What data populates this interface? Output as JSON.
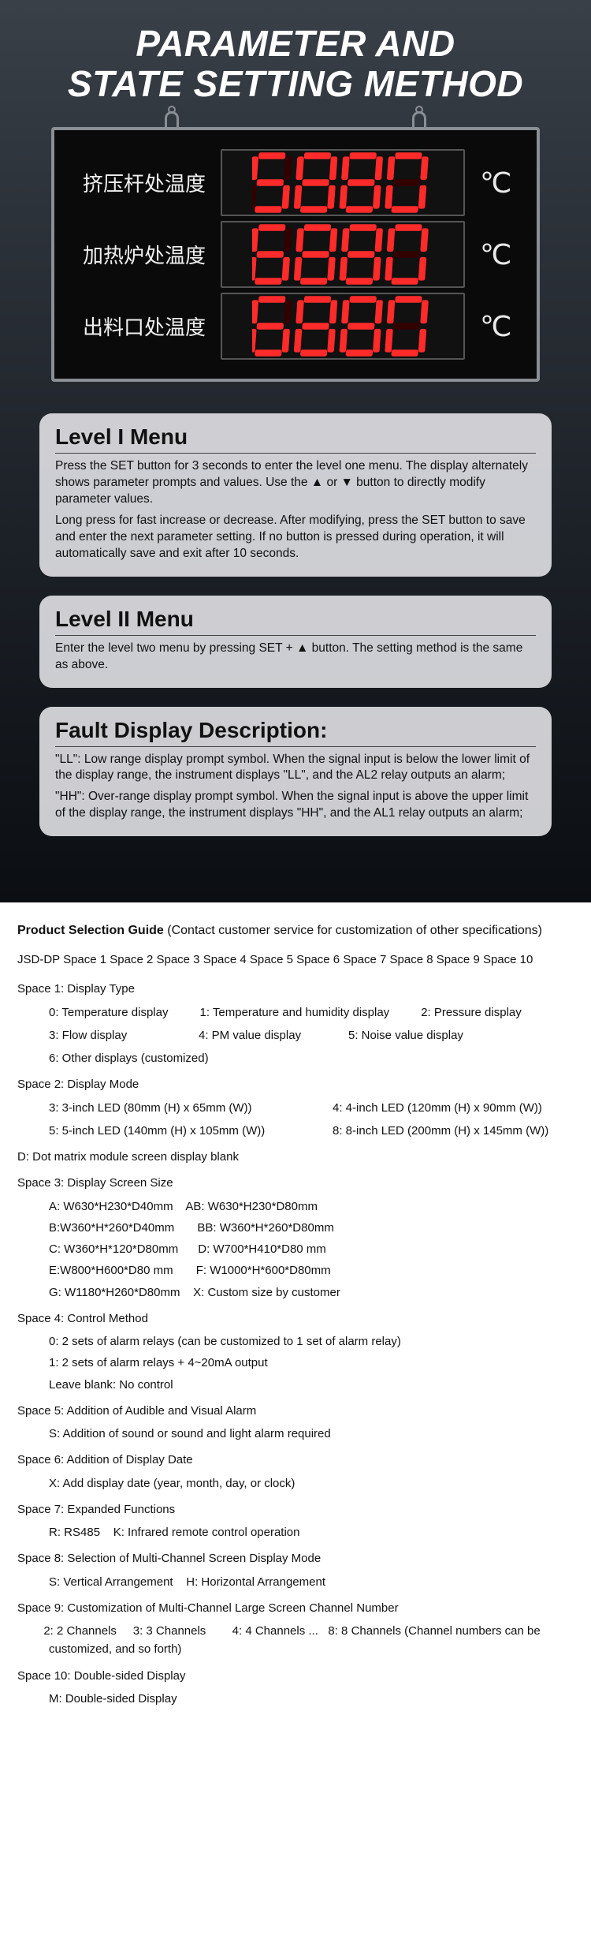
{
  "hero": {
    "title_line1": "PARAMETER AND",
    "title_line2": "STATE SETTING METHOD",
    "segment_color": "#ff2a2a",
    "segment_bg_color": "#330000",
    "device_rows": [
      {
        "label": "挤压杆处温度",
        "digits": "5880",
        "unit": "℃"
      },
      {
        "label": "加热炉处温度",
        "digits": "6880",
        "unit": "℃"
      },
      {
        "label": "出料口处温度",
        "digits": "6880",
        "unit": "℃"
      }
    ]
  },
  "panels": [
    {
      "title": "Level I Menu",
      "paragraphs": [
        "Press the SET button for 3 seconds to enter the level one menu. The display alternately shows parameter prompts and values. Use the ▲ or ▼ button to directly modify parameter values.",
        "Long press for fast increase or decrease. After modifying, press the SET button to save and enter the next parameter setting. If no button is pressed during operation, it will automatically save and exit after 10 seconds."
      ]
    },
    {
      "title": "Level II Menu",
      "paragraphs": [
        "Enter the level two menu by pressing SET + ▲ button. The setting method is the same as above."
      ]
    },
    {
      "title": "Fault Display Description:",
      "paragraphs": [
        "\"LL\": Low range display prompt symbol. When the signal input is below the lower limit of the display range, the instrument displays \"LL\", and the AL2 relay outputs an alarm;",
        "\"HH\": Over-range display prompt symbol. When the signal input is above the upper limit of the display range, the instrument displays \"HH\", and the AL1 relay outputs an alarm;"
      ]
    }
  ],
  "guide": {
    "title_bold": "Product Selection Guide",
    "title_rest": " (Contact customer service for customization of other specifications)",
    "code_line": "JSD-DP Space 1 Space 2 Space 3 Space 4 Space 5 Space 6 Space 7 Space 8 Space 9 Space 10",
    "spaces": [
      {
        "header": "Space 1: Display Type",
        "options": [
          "0: Temperature display",
          "1: Temperature and humidity display",
          "2: Pressure display",
          "3: Flow display",
          "4: PM value display",
          "5: Noise value display",
          "6: Other displays (customized)"
        ],
        "layout": "grid"
      },
      {
        "header": "Space 2: Display Mode",
        "options": [
          "3: 3-inch LED (80mm (H) x 65mm (W))",
          "4: 4-inch LED (120mm (H) x 90mm (W))",
          "5: 5-inch LED (140mm (H) x 105mm (W))",
          "8: 8-inch LED (200mm (H) x 145mm (W))"
        ],
        "trailer": "D: Dot matrix module screen display blank",
        "layout": "grid2"
      },
      {
        "header": "Space 3: Display Screen Size",
        "options": [
          "A: W630*H230*D40mm    AB: W630*H230*D80mm",
          "B:W360*H*260*D40mm       BB: W360*H*260*D80mm",
          "C: W360*H*120*D80mm      D: W700*H410*D80 mm",
          "E:W800*H600*D80 mm       F: W1000*H*600*D80mm",
          "G: W1180*H260*D80mm    X: Custom size by customer"
        ],
        "layout": "lines"
      },
      {
        "header": "Space 4: Control Method",
        "options": [
          "0: 2 sets of alarm relays (can be customized to 1 set of alarm relay)",
          "1: 2 sets of alarm relays + 4~20mA output",
          "Leave blank: No control"
        ],
        "layout": "lines"
      },
      {
        "header": "Space 5: Addition of Audible and Visual Alarm",
        "options": [
          "S: Addition of sound or sound and light alarm required"
        ],
        "layout": "lines"
      },
      {
        "header": "Space 6: Addition of Display Date",
        "options": [
          "X: Add display date (year, month, day, or clock)"
        ],
        "layout": "lines"
      },
      {
        "header": "Space 7: Expanded Functions",
        "options": [
          "R: RS485    K: Infrared remote control operation"
        ],
        "layout": "lines"
      },
      {
        "header": "Space 8: Selection of Multi-Channel Screen Display Mode",
        "options": [
          "S: Vertical Arrangement    H: Horizontal Arrangement"
        ],
        "layout": "lines"
      },
      {
        "header": "Space 9: Customization of Multi-Channel Large Screen Channel Number",
        "options": [
          "2: 2 Channels     3: 3 Channels        4: 4 Channels ...   8: 8 Channels (Channel numbers can be customized, and so forth)"
        ],
        "layout": "lines-noindent"
      },
      {
        "header": "Space 10: Double-sided Display",
        "options": [
          "M: Double-sided Display"
        ],
        "layout": "lines"
      }
    ]
  },
  "seven_seg": {
    "digits": {
      "0": [
        1,
        1,
        1,
        1,
        1,
        1,
        0
      ],
      "1": [
        0,
        1,
        1,
        0,
        0,
        0,
        0
      ],
      "2": [
        1,
        1,
        0,
        1,
        1,
        0,
        1
      ],
      "3": [
        1,
        1,
        1,
        1,
        0,
        0,
        1
      ],
      "4": [
        0,
        1,
        1,
        0,
        0,
        1,
        1
      ],
      "5": [
        1,
        0,
        1,
        1,
        0,
        1,
        1
      ],
      "6": [
        1,
        0,
        1,
        1,
        1,
        1,
        1
      ],
      "7": [
        1,
        1,
        1,
        0,
        0,
        0,
        0
      ],
      "8": [
        1,
        1,
        1,
        1,
        1,
        1,
        1
      ],
      "9": [
        1,
        1,
        1,
        1,
        0,
        1,
        1
      ]
    }
  }
}
